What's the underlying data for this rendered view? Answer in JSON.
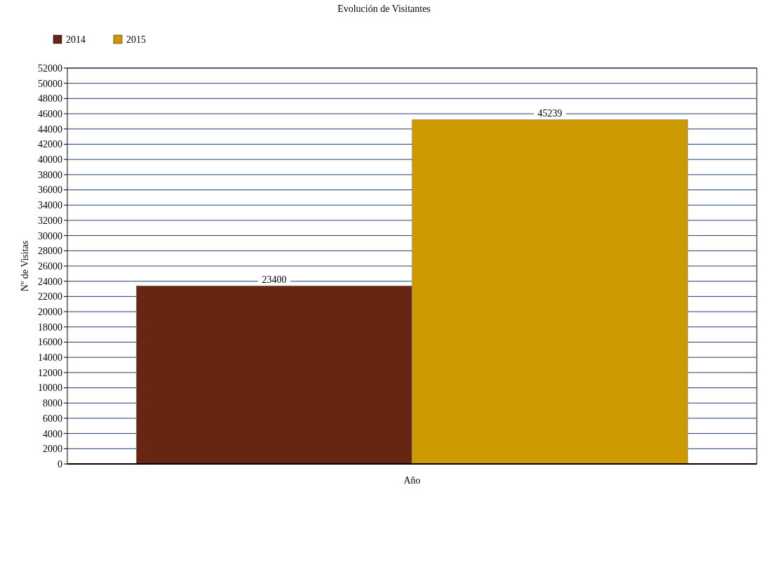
{
  "chart_data": {
    "type": "bar",
    "title": "Evolución de Visitantes",
    "xlabel": "Año",
    "ylabel": "Nº de Visitas",
    "categories": [
      null
    ],
    "series": [
      {
        "name": "2014",
        "color": "#662611",
        "values": [
          23400
        ]
      },
      {
        "name": "2015",
        "color": "#cc9900",
        "values": [
          45239
        ]
      }
    ],
    "ylim": [
      0,
      52000
    ],
    "yticks": [
      0,
      2000,
      4000,
      6000,
      8000,
      10000,
      12000,
      14000,
      16000,
      18000,
      20000,
      22000,
      24000,
      26000,
      28000,
      30000,
      32000,
      34000,
      36000,
      38000,
      40000,
      42000,
      44000,
      46000,
      48000,
      50000,
      52000
    ],
    "grid": "y",
    "legend": "top left",
    "data_labels": true
  }
}
